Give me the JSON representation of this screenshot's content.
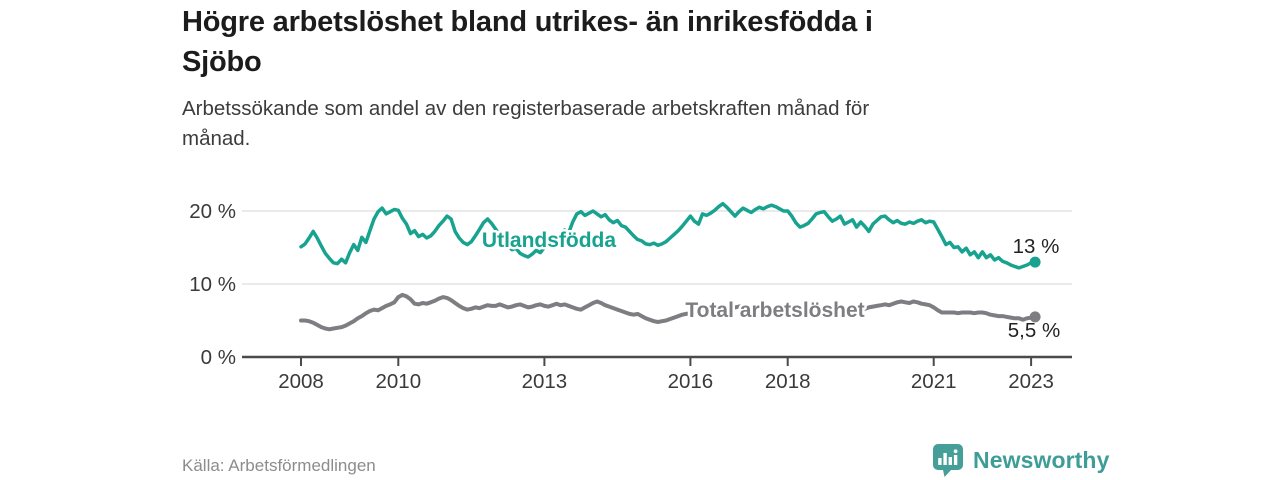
{
  "header": {
    "title_lines": [
      "Högre arbetslöshet bland utrikes- än inrikesfödda i",
      "Sjöbo"
    ],
    "subtitle_lines": [
      "Arbetssökande som andel av den registerbaserade arbetskraften månad för",
      "månad."
    ]
  },
  "footer": {
    "source": "Källa: Arbetsförmedlingen",
    "branding": {
      "wordmark": "Newsworthy",
      "icon": "newsworthy-chart-pin-icon",
      "icon_color": "#459e98",
      "wordmark_color": "#3f9d98"
    }
  },
  "colors": {
    "foreign_born_line": "#17a38f",
    "total_line": "#7e7e82",
    "axis": "#4a4a4a",
    "gridline": "#e3e3e3",
    "tick_text": "#3a3a3a",
    "annotation_text": "#232323",
    "background": "#ffffff"
  },
  "chart_data": {
    "type": "line",
    "title": "Högre arbetslöshet bland utrikes- än inrikesfödda i Sjöbo",
    "subtitle": "Arbetssökande som andel av den registerbaserade arbetskraften månad för månad.",
    "unit": "%",
    "x_start": "2008-01",
    "x_end": "2023-02",
    "x_interval": "monthly",
    "x_tick_labels": [
      "2008",
      "2010",
      "2013",
      "2016",
      "2018",
      "2021",
      "2023"
    ],
    "y_ticks": [
      {
        "value": 0,
        "label": "0 %"
      },
      {
        "value": 10,
        "label": "10 %"
      },
      {
        "value": 20,
        "label": "20 %"
      }
    ],
    "ylim": [
      0,
      22.5
    ],
    "grid": "horizontal",
    "legend_position": "inline-labels",
    "series": [
      {
        "name": "Utlandsfödda",
        "color": "#17a38f",
        "end_label": "13 %",
        "end_value": 13.0,
        "values": [
          15.1,
          15.5,
          16.3,
          17.2,
          16.3,
          15.2,
          14.2,
          13.5,
          12.9,
          12.8,
          13.4,
          12.9,
          14.3,
          15.4,
          14.6,
          16.4,
          15.7,
          17.3,
          18.9,
          19.9,
          20.4,
          19.6,
          19.9,
          20.2,
          20.1,
          19.0,
          18.2,
          16.9,
          17.3,
          16.5,
          16.8,
          16.3,
          16.6,
          17.2,
          18.0,
          18.6,
          19.3,
          18.9,
          17.2,
          16.3,
          15.7,
          15.4,
          15.8,
          16.6,
          17.5,
          18.4,
          18.9,
          18.3,
          17.5,
          16.8,
          16.0,
          15.3,
          14.7,
          14.9,
          14.2,
          13.9,
          13.7,
          14.1,
          14.6,
          14.3,
          15.0,
          15.6,
          16.2,
          15.8,
          16.7,
          17.4,
          17.0,
          18.5,
          19.6,
          19.9,
          19.4,
          19.7,
          20.0,
          19.6,
          19.2,
          19.5,
          18.8,
          18.4,
          18.7,
          18.0,
          17.8,
          17.2,
          16.6,
          16.1,
          15.9,
          15.5,
          15.4,
          15.6,
          15.3,
          15.5,
          15.8,
          16.3,
          16.8,
          17.3,
          17.9,
          18.6,
          19.3,
          18.6,
          18.2,
          19.6,
          19.4,
          19.7,
          20.1,
          20.6,
          21.0,
          20.5,
          19.9,
          19.3,
          19.9,
          20.4,
          20.1,
          19.8,
          20.2,
          20.5,
          20.3,
          20.6,
          20.8,
          20.6,
          20.3,
          20.0,
          20.0,
          19.3,
          18.4,
          17.8,
          18.0,
          18.3,
          18.9,
          19.6,
          19.8,
          19.9,
          19.2,
          18.6,
          18.9,
          19.3,
          18.2,
          18.5,
          18.8,
          17.8,
          18.5,
          17.9,
          17.2,
          18.2,
          18.7,
          19.2,
          19.3,
          18.8,
          18.4,
          18.7,
          18.3,
          18.2,
          18.5,
          18.3,
          18.6,
          18.8,
          18.4,
          18.6,
          18.5,
          17.5,
          16.5,
          15.4,
          15.7,
          15.0,
          15.1,
          14.4,
          14.9,
          14.0,
          14.4,
          13.6,
          14.4,
          13.6,
          14.0,
          13.3,
          13.6,
          13.1,
          12.9,
          12.6,
          12.4,
          12.2,
          12.4,
          12.6,
          12.9,
          13.0
        ]
      },
      {
        "name": "Total arbetslöshet",
        "color": "#7e7e82",
        "end_label": "5,5 %",
        "end_value": 5.5,
        "values": [
          5.0,
          5.0,
          4.9,
          4.7,
          4.4,
          4.1,
          3.9,
          3.8,
          3.9,
          4.0,
          4.1,
          4.3,
          4.6,
          4.9,
          5.3,
          5.6,
          6.0,
          6.3,
          6.5,
          6.4,
          6.7,
          7.0,
          7.2,
          7.5,
          8.2,
          8.5,
          8.3,
          7.9,
          7.3,
          7.2,
          7.4,
          7.3,
          7.5,
          7.7,
          8.0,
          8.2,
          8.1,
          7.8,
          7.4,
          7.0,
          6.7,
          6.5,
          6.6,
          6.8,
          6.7,
          6.9,
          7.1,
          7.0,
          7.0,
          7.2,
          7.0,
          6.8,
          6.9,
          7.1,
          7.2,
          7.0,
          6.8,
          6.9,
          7.1,
          7.2,
          7.0,
          6.9,
          7.1,
          7.3,
          7.1,
          7.2,
          7.0,
          6.8,
          6.6,
          6.5,
          6.8,
          7.1,
          7.4,
          7.6,
          7.4,
          7.1,
          6.9,
          6.7,
          6.5,
          6.3,
          6.1,
          5.9,
          5.8,
          5.9,
          5.6,
          5.3,
          5.1,
          4.9,
          4.8,
          4.9,
          5.0,
          5.2,
          5.4,
          5.6,
          5.8,
          5.9,
          6.0,
          6.2,
          6.1,
          6.3,
          6.2,
          6.4,
          6.5,
          6.4,
          6.6,
          6.5,
          6.7,
          6.8,
          6.9,
          7.0,
          6.8,
          6.9,
          6.7,
          6.8,
          7.0,
          6.9,
          6.7,
          6.6,
          6.7,
          6.8,
          6.6,
          6.5,
          6.3,
          6.2,
          6.1,
          6.2,
          6.3,
          6.2,
          6.1,
          6.0,
          6.1,
          6.2,
          6.3,
          6.2,
          6.4,
          6.3,
          6.5,
          6.6,
          6.7,
          6.6,
          6.8,
          6.9,
          7.0,
          7.1,
          7.2,
          7.1,
          7.3,
          7.5,
          7.6,
          7.5,
          7.4,
          7.6,
          7.5,
          7.3,
          7.2,
          7.1,
          6.8,
          6.4,
          6.1,
          6.1,
          6.1,
          6.1,
          6.0,
          6.1,
          6.1,
          6.1,
          6.0,
          6.1,
          6.1,
          6.0,
          5.8,
          5.7,
          5.6,
          5.6,
          5.5,
          5.4,
          5.3,
          5.3,
          5.1,
          5.3,
          5.4,
          5.5
        ]
      }
    ]
  }
}
